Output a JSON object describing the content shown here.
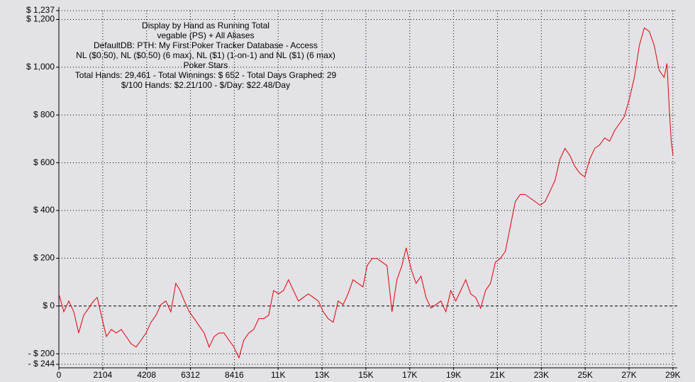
{
  "chart_data": {
    "type": "line",
    "annotations": [
      "Display by Hand as Running Total",
      "vegable (PS) + All Aliases",
      "DefaultDB: PTH: My First Poker Tracker Database - Access",
      "NL ($0.50), NL ($0.50) (6 max), NL ($1) (1-on-1) and NL ($1) (6 max)",
      "Poker Stars",
      "Total Hands: 29,461 - Total Winnings: $ 652 - Total Days Graphed: 29",
      "$/100 Hands: $2.21/100 - $/Day: $22.48/Day"
    ],
    "xlim": [
      0,
      29461
    ],
    "xticks": [
      0,
      2104,
      4208,
      6312,
      8416,
      {
        "value": 10520,
        "label": "11K"
      },
      {
        "value": 12624,
        "label": "13K"
      },
      {
        "value": 14728,
        "label": "15K"
      },
      {
        "value": 16832,
        "label": "17K"
      },
      {
        "value": 18936,
        "label": "19K"
      },
      {
        "value": 21040,
        "label": "21K"
      },
      {
        "value": 23144,
        "label": "23K"
      },
      {
        "value": 25248,
        "label": "25K"
      },
      {
        "value": 27352,
        "label": "27K"
      },
      {
        "value": 29456,
        "label": "29K"
      }
    ],
    "ylim": [
      -244,
      1237
    ],
    "yticks": [
      {
        "value": -244,
        "label": "- $ 244"
      },
      {
        "value": -200,
        "label": "- $ 200"
      },
      {
        "value": 0,
        "label": "$ 0"
      },
      {
        "value": 200,
        "label": "$ 200"
      },
      {
        "value": 400,
        "label": "$ 400"
      },
      {
        "value": 600,
        "label": "$ 600"
      },
      {
        "value": 800,
        "label": "$ 800"
      },
      {
        "value": 1000,
        "label": "$ 1,000"
      },
      {
        "value": 1200,
        "label": "$ 1,200"
      },
      {
        "value": 1237,
        "label": "$ 1,237"
      }
    ],
    "grid": true,
    "series": [
      {
        "color": "#e00000",
        "x": [
          0,
          238,
          476,
          714,
          952,
          1190,
          1428,
          1666,
          1836,
          2074,
          2278,
          2516,
          2754,
          2992,
          3230,
          3468,
          3706,
          3944,
          4182,
          4420,
          4658,
          4896,
          5134,
          5372,
          5610,
          5814,
          6018,
          6256,
          6494,
          6732,
          6970,
          7208,
          7446,
          7684,
          7922,
          8160,
          8398,
          8636,
          8874,
          9112,
          9350,
          9588,
          9826,
          10064,
          10302,
          10540,
          10778,
          11016,
          11254,
          11492,
          11730,
          11968,
          12206,
          12444,
          12682,
          12920,
          13158,
          13396,
          13634,
          13872,
          14110,
          14348,
          14586,
          14790,
          15028,
          15266,
          15504,
          15742,
          15980,
          16218,
          16456,
          16660,
          16898,
          17136,
          17374,
          17612,
          17850,
          18088,
          18326,
          18564,
          18802,
          19040,
          19278,
          19516,
          19754,
          19992,
          20230,
          20468,
          20706,
          20944,
          21182,
          21420,
          21658,
          21896,
          22134,
          22372,
          22610,
          22848,
          23086,
          23324,
          23562,
          23800,
          24038,
          24276,
          24514,
          24752,
          24990,
          25228,
          25466,
          25704,
          25942,
          26180,
          26418,
          26656,
          26894,
          27132,
          27370,
          27608,
          27846,
          28084,
          28322,
          28560,
          28798,
          29036,
          29172,
          29274,
          29376,
          29461
        ],
        "values": [
          51,
          -24,
          21,
          -24,
          -113,
          -39,
          -9,
          21,
          36,
          -53,
          -128,
          -98,
          -113,
          -98,
          -128,
          -158,
          -172,
          -143,
          -113,
          -68,
          -39,
          6,
          21,
          -24,
          95,
          65,
          21,
          -24,
          -53,
          -83,
          -113,
          -172,
          -128,
          -113,
          -113,
          -143,
          -172,
          -217,
          -143,
          -113,
          -98,
          -53,
          -53,
          -39,
          65,
          51,
          65,
          110,
          65,
          21,
          36,
          51,
          36,
          21,
          -24,
          -53,
          -68,
          21,
          6,
          51,
          110,
          95,
          80,
          169,
          199,
          199,
          184,
          169,
          -24,
          110,
          169,
          244,
          155,
          95,
          125,
          36,
          -9,
          6,
          21,
          -24,
          65,
          21,
          65,
          110,
          51,
          36,
          -9,
          65,
          95,
          184,
          199,
          229,
          333,
          437,
          467,
          467,
          452,
          437,
          422,
          437,
          481,
          526,
          615,
          660,
          630,
          585,
          556,
          541,
          615,
          660,
          675,
          704,
          690,
          734,
          764,
          794,
          868,
          957,
          1091,
          1165,
          1150,
          1091,
          987,
          957,
          1016,
          838,
          690,
          630
        ]
      }
    ]
  }
}
